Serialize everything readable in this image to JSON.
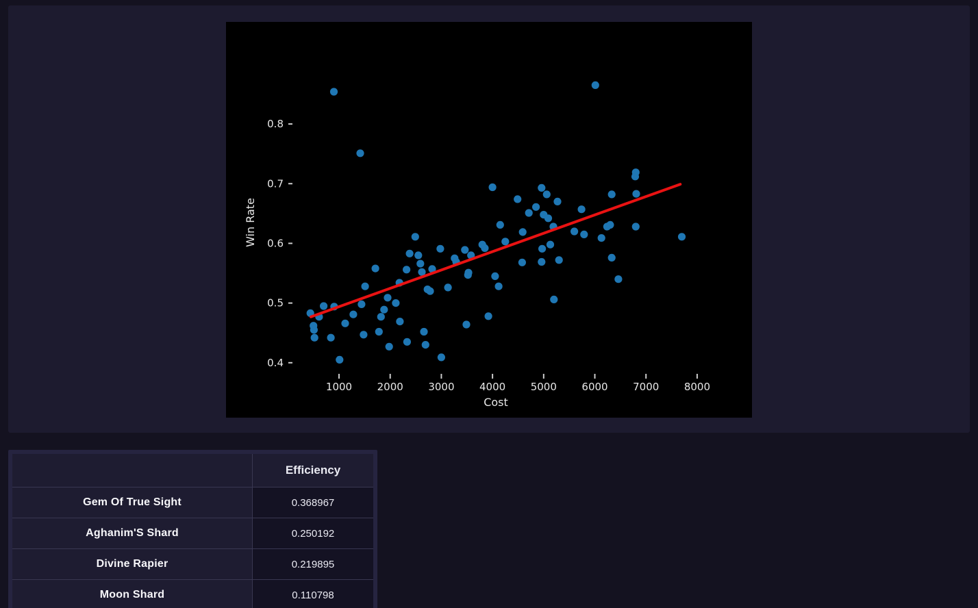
{
  "colors": {
    "page_bg": "#141220",
    "panel_bg": "#1d1b2f",
    "chart_bg": "#000000",
    "point": "#1f77b4",
    "trend": "#e91212",
    "chart_text": "#e8e8e8",
    "table_frame": "#262440",
    "cell_name_bg": "#1e1c31",
    "cell_value_bg": "#141223",
    "divider": "#393751",
    "table_text": "#f7f7fa"
  },
  "chart_data": {
    "type": "scatter",
    "title": "",
    "xlabel": "Cost",
    "ylabel": "Win Rate",
    "x_ticks": [
      1000,
      2000,
      3000,
      4000,
      5000,
      6000,
      7000,
      8000
    ],
    "y_ticks": [
      0.4,
      0.5,
      0.6,
      0.7,
      0.8
    ],
    "xlim": [
      -1209,
      9072
    ],
    "ylim": [
      0.308,
      0.971
    ],
    "grid": false,
    "legend": "none",
    "point_color": "#1f77b4",
    "trend_color": "#e91212",
    "points": [
      [
        900,
        0.854
      ],
      [
        1415,
        0.751
      ],
      [
        6010,
        0.865
      ],
      [
        440,
        0.483
      ],
      [
        500,
        0.462
      ],
      [
        510,
        0.455
      ],
      [
        520,
        0.442
      ],
      [
        610,
        0.477
      ],
      [
        700,
        0.495
      ],
      [
        840,
        0.442
      ],
      [
        905,
        0.494
      ],
      [
        1010,
        0.405
      ],
      [
        1120,
        0.466
      ],
      [
        1280,
        0.481
      ],
      [
        1440,
        0.498
      ],
      [
        1480,
        0.447
      ],
      [
        1510,
        0.528
      ],
      [
        1710,
        0.558
      ],
      [
        1780,
        0.452
      ],
      [
        1820,
        0.477
      ],
      [
        1880,
        0.489
      ],
      [
        1950,
        0.509
      ],
      [
        1980,
        0.427
      ],
      [
        2110,
        0.5
      ],
      [
        2180,
        0.534
      ],
      [
        2190,
        0.469
      ],
      [
        2320,
        0.556
      ],
      [
        2330,
        0.435
      ],
      [
        2380,
        0.583
      ],
      [
        2490,
        0.611
      ],
      [
        2550,
        0.58
      ],
      [
        2590,
        0.566
      ],
      [
        2620,
        0.552
      ],
      [
        2660,
        0.452
      ],
      [
        2690,
        0.43
      ],
      [
        2730,
        0.523
      ],
      [
        2780,
        0.52
      ],
      [
        2820,
        0.557
      ],
      [
        2980,
        0.591
      ],
      [
        3000,
        0.409
      ],
      [
        3130,
        0.526
      ],
      [
        3260,
        0.575
      ],
      [
        3290,
        0.569
      ],
      [
        3460,
        0.589
      ],
      [
        3490,
        0.464
      ],
      [
        3520,
        0.547
      ],
      [
        3530,
        0.551
      ],
      [
        3580,
        0.58
      ],
      [
        3800,
        0.598
      ],
      [
        3850,
        0.592
      ],
      [
        3920,
        0.478
      ],
      [
        4000,
        0.694
      ],
      [
        4050,
        0.545
      ],
      [
        4120,
        0.528
      ],
      [
        4150,
        0.631
      ],
      [
        4250,
        0.603
      ],
      [
        4490,
        0.674
      ],
      [
        4580,
        0.568
      ],
      [
        4590,
        0.619
      ],
      [
        4710,
        0.651
      ],
      [
        4850,
        0.661
      ],
      [
        4960,
        0.693
      ],
      [
        4970,
        0.591
      ],
      [
        4960,
        0.569
      ],
      [
        5000,
        0.648
      ],
      [
        5060,
        0.682
      ],
      [
        5090,
        0.642
      ],
      [
        5130,
        0.598
      ],
      [
        5190,
        0.628
      ],
      [
        5200,
        0.506
      ],
      [
        5270,
        0.67
      ],
      [
        5300,
        0.572
      ],
      [
        5600,
        0.62
      ],
      [
        5740,
        0.657
      ],
      [
        5790,
        0.615
      ],
      [
        6130,
        0.609
      ],
      [
        6240,
        0.628
      ],
      [
        6300,
        0.631
      ],
      [
        6330,
        0.682
      ],
      [
        6330,
        0.576
      ],
      [
        6460,
        0.54
      ],
      [
        6800,
        0.719
      ],
      [
        6790,
        0.712
      ],
      [
        6810,
        0.683
      ],
      [
        6800,
        0.628
      ],
      [
        7700,
        0.611
      ]
    ],
    "trendline": {
      "x1": 450,
      "y1": 0.477,
      "x2": 7670,
      "y2": 0.699
    }
  },
  "table": {
    "columns": [
      "",
      "Efficiency"
    ],
    "rows": [
      {
        "name": "Gem Of True Sight",
        "efficiency": "0.368967"
      },
      {
        "name": "Aghanim'S Shard",
        "efficiency": "0.250192"
      },
      {
        "name": "Divine Rapier",
        "efficiency": "0.219895"
      },
      {
        "name": "Moon Shard",
        "efficiency": "0.110798"
      }
    ]
  }
}
